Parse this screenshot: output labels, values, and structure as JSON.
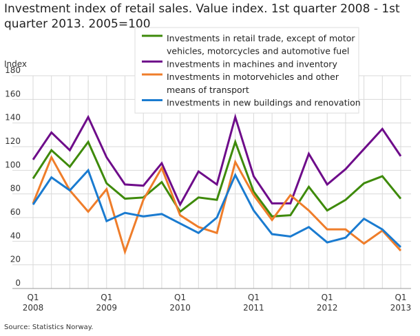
{
  "chart_data": {
    "type": "line",
    "title": "Investment index of retail sales. Value index. 1st quarter 2008 - 1st quarter 2013. 2005=100",
    "ylabel": "Index",
    "ylim": [
      0,
      180
    ],
    "yticks": [
      0,
      20,
      40,
      60,
      80,
      100,
      120,
      140,
      160,
      180
    ],
    "x": [
      "2008Q1",
      "2008Q2",
      "2008Q3",
      "2008Q4",
      "2009Q1",
      "2009Q2",
      "2009Q3",
      "2009Q4",
      "2010Q1",
      "2010Q2",
      "2010Q3",
      "2010Q4",
      "2011Q1",
      "2011Q2",
      "2011Q3",
      "2011Q4",
      "2012Q1",
      "2012Q2",
      "2012Q3",
      "2012Q4",
      "2013Q1"
    ],
    "xtick_labels": [
      {
        "index": 0,
        "q": "Q1",
        "year": "2008"
      },
      {
        "index": 4,
        "q": "Q1",
        "year": "2009"
      },
      {
        "index": 8,
        "q": "Q1",
        "year": "2010"
      },
      {
        "index": 12,
        "q": "Q1",
        "year": "2011"
      },
      {
        "index": 16,
        "q": "Q1",
        "year": "2012"
      },
      {
        "index": 20,
        "q": "Q1",
        "year": "2013"
      }
    ],
    "grid": true,
    "legend_placement": "top-right",
    "series": [
      {
        "name": "Investments in retail trade, except of motor vehicles, motorcycles and automotive fuel",
        "legend_lines": [
          "Investments in retail trade, except of motor",
          "vehicles, motorcycles and automotive fuel"
        ],
        "color": "#3e8a0a",
        "values": [
          93,
          117,
          103,
          124,
          89,
          76,
          77,
          90,
          65,
          77,
          75,
          124,
          82,
          61,
          62,
          86,
          66,
          75,
          89,
          95,
          76
        ]
      },
      {
        "name": "Investments in machines and inventory",
        "legend_lines": [
          "Investments in machines and inventory"
        ],
        "color": "#6e0c8a",
        "values": [
          109,
          132,
          117,
          145,
          111,
          88,
          87,
          106,
          71,
          99,
          88,
          145,
          95,
          72,
          72,
          114,
          88,
          101,
          118,
          135,
          112
        ]
      },
      {
        "name": "Investments in motorvehicles and other means of transport",
        "legend_lines": [
          "Investments in motorvehicles and other",
          "means of transport"
        ],
        "color": "#ef7d2a",
        "values": [
          72,
          111,
          83,
          65,
          84,
          31,
          75,
          102,
          62,
          52,
          47,
          107,
          79,
          58,
          79,
          66,
          50,
          50,
          38,
          49,
          32
        ]
      },
      {
        "name": "Investments in new buildings and renovation",
        "legend_lines": [
          "Investments in new buildings and renovation"
        ],
        "color": "#1a7bd0",
        "values": [
          71,
          94,
          83,
          100,
          57,
          64,
          61,
          63,
          55,
          47,
          60,
          96,
          66,
          46,
          44,
          52,
          39,
          43,
          59,
          50,
          35
        ]
      }
    ]
  },
  "source": "Source: Statistics Norway."
}
